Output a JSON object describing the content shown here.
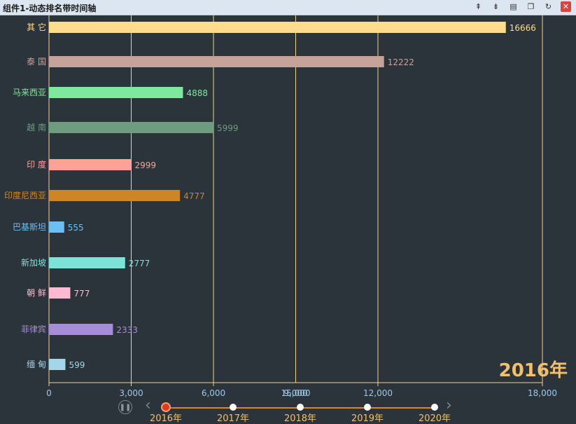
{
  "window": {
    "title": "组件1-动态排名带时间轴",
    "buttons": [
      "expand-up-icon",
      "expand-down-icon",
      "export-icon",
      "copy-icon",
      "refresh-icon",
      "close-icon"
    ]
  },
  "chart_data": {
    "type": "bar",
    "orientation": "horizontal",
    "categories": [
      "其 它",
      "泰 国",
      "马来西亚",
      "越 南",
      "印 度",
      "印度尼西亚",
      "巴基斯坦",
      "新加坡",
      "朝 鲜",
      "菲律宾",
      "缅 甸"
    ],
    "values": [
      16666,
      12222,
      4888,
      5999,
      2999,
      4777,
      555,
      2777,
      777,
      2333,
      599
    ],
    "value_labels": [
      "16666",
      "12222",
      "4888",
      "5999",
      "2999",
      "4777",
      "555",
      "2777",
      "777",
      "2333",
      "599"
    ],
    "colors": [
      "#ffdb8c",
      "#c5a39b",
      "#7ee89d",
      "#6e9c7e",
      "#ffa195",
      "#cf8524",
      "#6bbff5",
      "#7ce3d8",
      "#ffb9d1",
      "#a78dd6",
      "#a4d6ea"
    ],
    "x_ticks": [
      0,
      3000,
      6000,
      12000,
      18000
    ],
    "x_tick_labels": [
      "0",
      "3,000",
      "6,000",
      "12,000",
      "18,000"
    ],
    "overlap_tick_labels": [
      "15,000",
      "9,000"
    ],
    "xlim": [
      0,
      18000
    ],
    "grid": true,
    "current_year": "2016年"
  },
  "timeline": {
    "play_state": "pause",
    "labels": [
      "2016年",
      "2017年",
      "2018年",
      "2019年",
      "2020年"
    ],
    "active_index": 0
  }
}
